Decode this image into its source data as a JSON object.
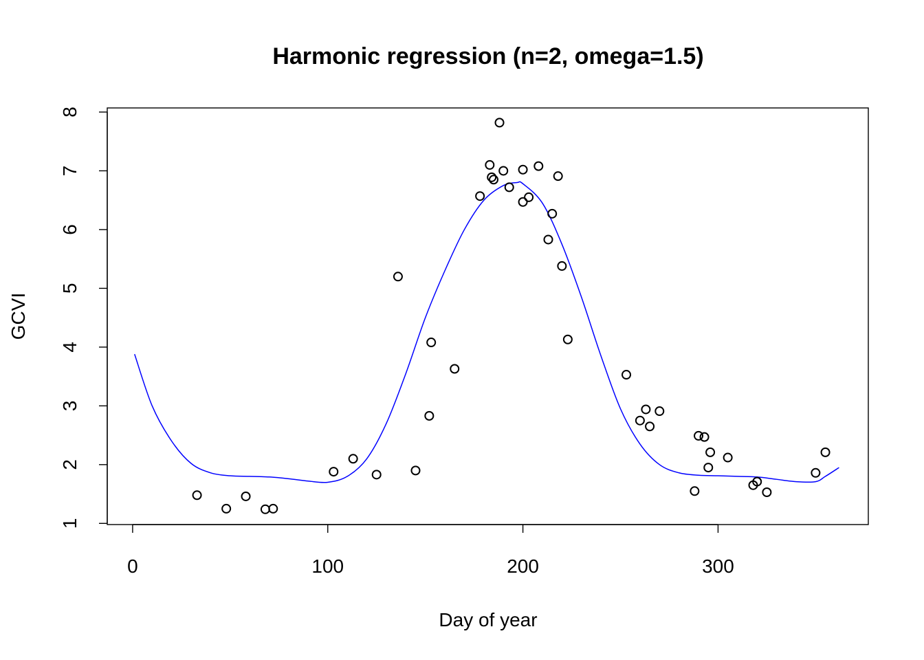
{
  "chart_data": {
    "type": "scatter",
    "title": "Harmonic regression (n=2, omega=1.5)",
    "xlabel": "Day of year",
    "ylabel": "GCVI",
    "xlim": [
      -13,
      377
    ],
    "ylim": [
      0.98,
      8.07
    ],
    "xticks": [
      0,
      100,
      200,
      300
    ],
    "yticks": [
      1,
      2,
      3,
      4,
      5,
      6,
      7,
      8
    ],
    "grid": false,
    "legend": "none",
    "colors": {
      "points": "#000000",
      "fit_line": "#0000ff"
    },
    "points": [
      {
        "x": 33,
        "y": 1.48
      },
      {
        "x": 48,
        "y": 1.25
      },
      {
        "x": 58,
        "y": 1.46
      },
      {
        "x": 68,
        "y": 1.24
      },
      {
        "x": 72,
        "y": 1.25
      },
      {
        "x": 103,
        "y": 1.88
      },
      {
        "x": 113,
        "y": 2.1
      },
      {
        "x": 125,
        "y": 1.83
      },
      {
        "x": 136,
        "y": 5.2
      },
      {
        "x": 145,
        "y": 1.9
      },
      {
        "x": 152,
        "y": 2.83
      },
      {
        "x": 153,
        "y": 4.08
      },
      {
        "x": 165,
        "y": 3.63
      },
      {
        "x": 178,
        "y": 6.57
      },
      {
        "x": 183,
        "y": 7.1
      },
      {
        "x": 184,
        "y": 6.89
      },
      {
        "x": 185,
        "y": 6.85
      },
      {
        "x": 188,
        "y": 7.82
      },
      {
        "x": 190,
        "y": 7.0
      },
      {
        "x": 193,
        "y": 6.72
      },
      {
        "x": 200,
        "y": 7.02
      },
      {
        "x": 200,
        "y": 6.47
      },
      {
        "x": 203,
        "y": 6.55
      },
      {
        "x": 208,
        "y": 7.08
      },
      {
        "x": 213,
        "y": 5.83
      },
      {
        "x": 215,
        "y": 6.27
      },
      {
        "x": 218,
        "y": 6.91
      },
      {
        "x": 220,
        "y": 5.38
      },
      {
        "x": 223,
        "y": 4.13
      },
      {
        "x": 253,
        "y": 3.53
      },
      {
        "x": 260,
        "y": 2.75
      },
      {
        "x": 263,
        "y": 2.94
      },
      {
        "x": 265,
        "y": 2.65
      },
      {
        "x": 270,
        "y": 2.91
      },
      {
        "x": 288,
        "y": 1.55
      },
      {
        "x": 290,
        "y": 2.49
      },
      {
        "x": 293,
        "y": 2.47
      },
      {
        "x": 295,
        "y": 1.95
      },
      {
        "x": 296,
        "y": 2.21
      },
      {
        "x": 305,
        "y": 2.12
      },
      {
        "x": 318,
        "y": 1.65
      },
      {
        "x": 320,
        "y": 1.71
      },
      {
        "x": 325,
        "y": 1.53
      },
      {
        "x": 350,
        "y": 1.86
      },
      {
        "x": 355,
        "y": 2.21
      }
    ],
    "fit_line": {
      "x": [
        1,
        10,
        20,
        30,
        40,
        50,
        60,
        70,
        80,
        90,
        100,
        110,
        120,
        130,
        140,
        150,
        160,
        170,
        180,
        190,
        197,
        200,
        210,
        220,
        230,
        240,
        250,
        260,
        270,
        280,
        290,
        300,
        310,
        320,
        330,
        340,
        350,
        355,
        362
      ],
      "y": [
        3.88,
        3.0,
        2.4,
        2.02,
        1.86,
        1.81,
        1.8,
        1.79,
        1.76,
        1.72,
        1.7,
        1.8,
        2.1,
        2.7,
        3.55,
        4.5,
        5.3,
        6.0,
        6.5,
        6.75,
        6.8,
        6.78,
        6.45,
        5.75,
        4.85,
        3.85,
        2.95,
        2.35,
        2.0,
        1.86,
        1.82,
        1.81,
        1.8,
        1.79,
        1.75,
        1.71,
        1.71,
        1.8,
        1.95
      ]
    }
  }
}
